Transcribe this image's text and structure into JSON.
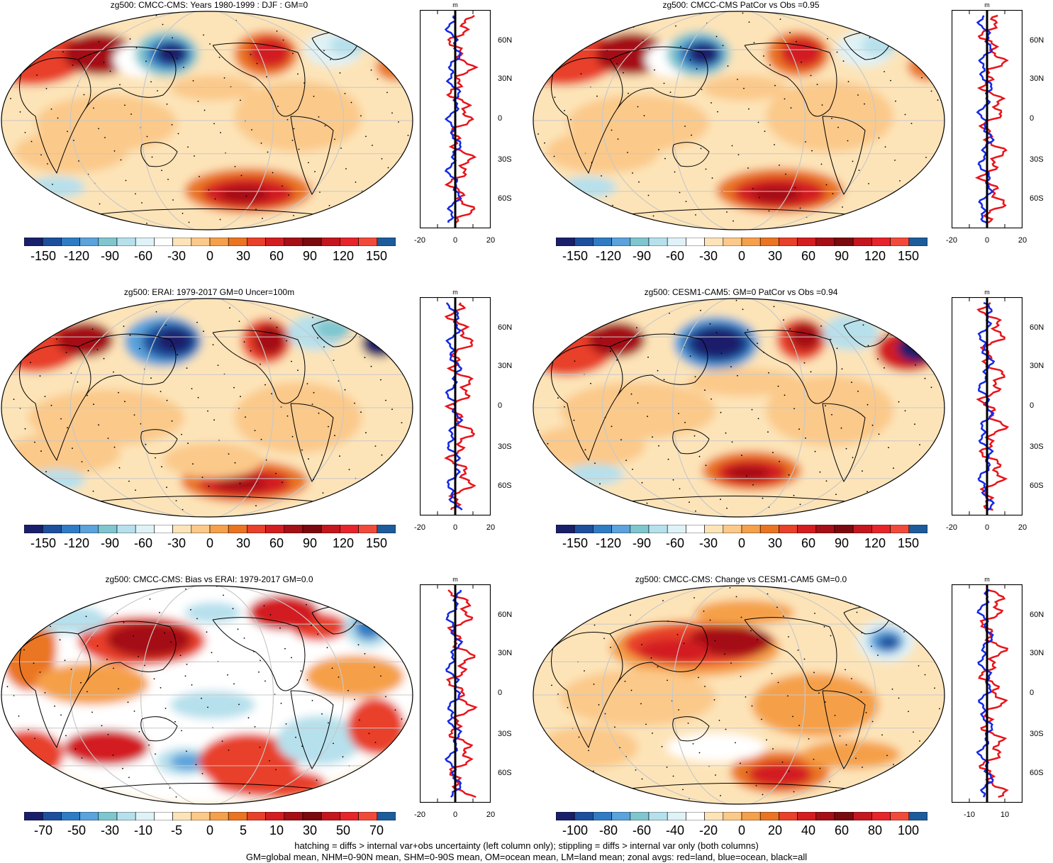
{
  "panels": [
    {
      "title": "zg500: CMCC-CMS: Years 1980-1999 : DJF : GM=0",
      "colorbar": [
        "-150",
        "-120",
        "-90",
        "-60",
        "-30",
        "0",
        "30",
        "60",
        "90",
        "120",
        "150"
      ],
      "zonal_ticks": [
        "-20",
        "0",
        "20"
      ],
      "units": "m",
      "lat_labels": [
        "60N",
        "30N",
        "0",
        "30S",
        "60S"
      ],
      "pattern": "clim"
    },
    {
      "title": "zg500: CMCC-CMS PatCor vs Obs =0.95",
      "colorbar": [
        "-150",
        "-120",
        "-90",
        "-60",
        "-30",
        "0",
        "30",
        "60",
        "90",
        "120",
        "150"
      ],
      "zonal_ticks": [
        "-20",
        "0",
        "20"
      ],
      "units": "m",
      "lat_labels": [
        "60N",
        "30N",
        "0",
        "30S",
        "60S"
      ],
      "pattern": "clim"
    },
    {
      "title": "zg500: ERAI: 1979-2017 GM=0 Uncer=100m",
      "colorbar": [
        "-150",
        "-120",
        "-90",
        "-60",
        "-30",
        "0",
        "30",
        "60",
        "90",
        "120",
        "150"
      ],
      "zonal_ticks": [
        "-20",
        "0",
        "20"
      ],
      "units": "m",
      "lat_labels": [
        "60N",
        "30N",
        "0",
        "30S",
        "60S"
      ],
      "pattern": "obs"
    },
    {
      "title": "zg500: CESM1-CAM5: GM=0 PatCor vs Obs =0.94",
      "colorbar": [
        "-150",
        "-120",
        "-90",
        "-60",
        "-30",
        "0",
        "30",
        "60",
        "90",
        "120",
        "150"
      ],
      "zonal_ticks": [
        "-20",
        "0",
        "20"
      ],
      "units": "m",
      "lat_labels": [
        "60N",
        "30N",
        "0",
        "30S",
        "60S"
      ],
      "pattern": "cesm"
    },
    {
      "title": "zg500: CMCC-CMS: Bias vs ERAI: 1979-2017 GM=0.0",
      "colorbar": [
        "-70",
        "-50",
        "-30",
        "-10",
        "-5",
        "0",
        "5",
        "10",
        "30",
        "50",
        "70"
      ],
      "zonal_ticks": [
        "-20",
        "0",
        "20"
      ],
      "units": "m",
      "lat_labels": [
        "60N",
        "30N",
        "0",
        "30S",
        "60S"
      ],
      "pattern": "bias"
    },
    {
      "title": "zg500: CMCC-CMS: Change vs CESM1-CAM5 GM=0.0",
      "colorbar": [
        "-100",
        "-80",
        "-60",
        "-40",
        "-20",
        "0",
        "20",
        "40",
        "60",
        "80",
        "100"
      ],
      "zonal_ticks": [
        "-10",
        "10"
      ],
      "units": "m",
      "lat_labels": [
        "60N",
        "30N",
        "0",
        "30S",
        "60S"
      ],
      "pattern": "change"
    }
  ],
  "colors": {
    "scale": [
      "#1a1f6b",
      "#1d4f9c",
      "#2f7cc4",
      "#5aa3dc",
      "#7fc6cf",
      "#b6e0ec",
      "#dff2f7",
      "#ffffff",
      "#fde4b8",
      "#fbc98a",
      "#f5a04a",
      "#ea7422",
      "#e8402a",
      "#d31d20",
      "#a50f15",
      "#7a0a0e",
      "#c3161e",
      "#e6242a",
      "#f24a3a",
      "#1d5c9c"
    ],
    "land_zonal": "#e8141a",
    "ocean_zonal": "#1428e6",
    "all_zonal": "#000000"
  },
  "footer": {
    "line1": "hatching = diffs > internal var+obs uncertainty (left column only); stippling = diffs > internal var only (both columns)",
    "line2": "GM=global mean, NHM=0-90N mean, SHM=0-90S mean, OM=ocean mean, LM=land mean; zonal avgs: red=land, blue=ocean, black=all"
  }
}
